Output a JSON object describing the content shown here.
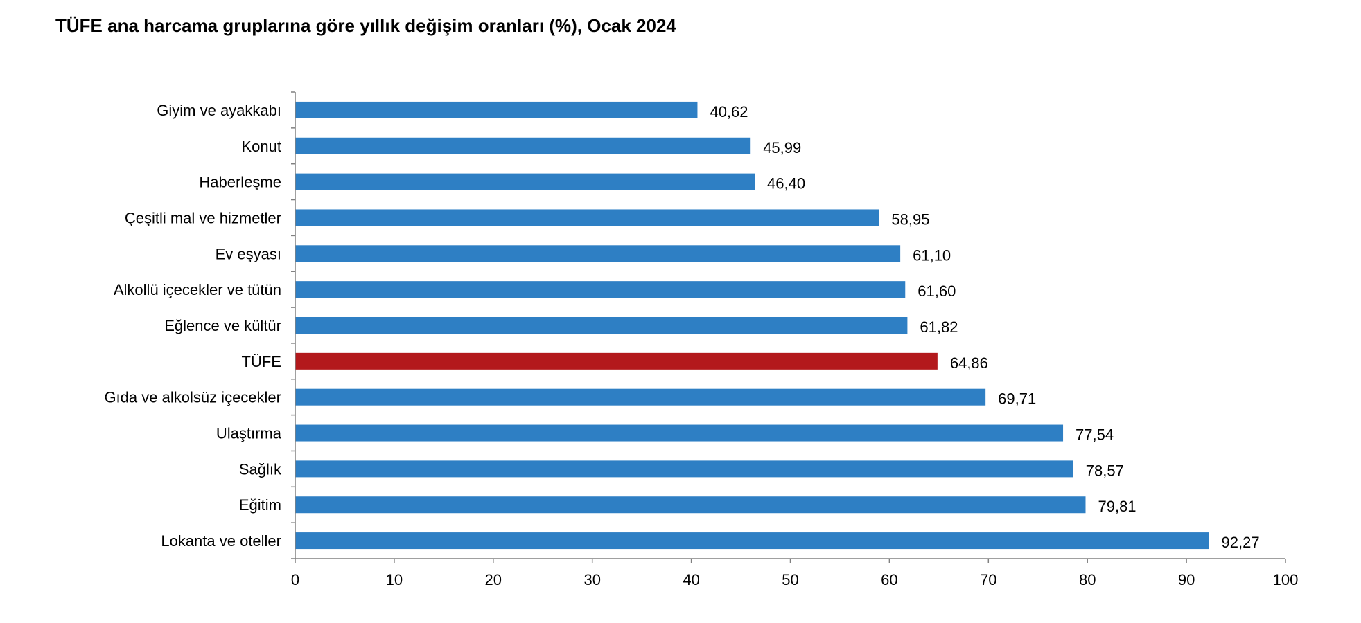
{
  "chart_data": {
    "type": "bar",
    "orientation": "horizontal",
    "title": "TÜFE ana harcama gruplarına göre yıllık değişim oranları (%), Ocak 2024",
    "xlabel": "",
    "ylabel": "",
    "xlim": [
      0,
      100
    ],
    "xticks": [
      "0",
      "10",
      "20",
      "30",
      "40",
      "50",
      "60",
      "70",
      "80",
      "90",
      "100"
    ],
    "grid": false,
    "legend": "none",
    "categories": [
      "Giyim ve ayakkabı",
      "Konut",
      "Haberleşme",
      "Çeşitli mal ve hizmetler",
      "Ev eşyası",
      "Alkollü içecekler ve tütün",
      "Eğlence ve kültür",
      "TÜFE",
      "Gıda ve alkolsüz içecekler",
      "Ulaştırma",
      "Sağlık",
      "Eğitim",
      "Lokanta ve oteller"
    ],
    "values": [
      40.62,
      45.99,
      46.4,
      58.95,
      61.1,
      61.6,
      61.82,
      64.86,
      69.71,
      77.54,
      78.57,
      79.81,
      92.27
    ],
    "value_labels": [
      "40,62",
      "45,99",
      "46,40",
      "58,95",
      "61,10",
      "61,60",
      "61,82",
      "64,86",
      "69,71",
      "77,54",
      "78,57",
      "79,81",
      "92,27"
    ],
    "colors": {
      "bar": "#2e7fc4",
      "highlight": "#b3191c",
      "highlight_category": "TÜFE",
      "axis": "#808080"
    }
  }
}
